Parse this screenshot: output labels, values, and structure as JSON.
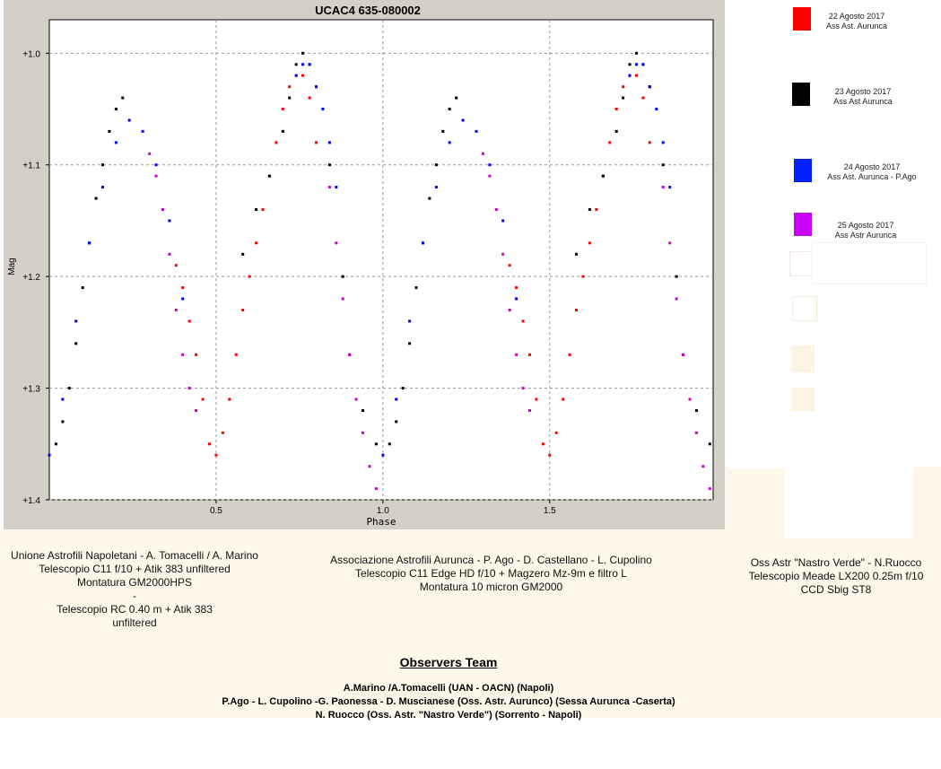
{
  "chart_data": {
    "type": "scatter",
    "title": "UCAC4 635-080002",
    "xlabel": "Phase",
    "ylabel": "Mag",
    "xlim": [
      0,
      1.99
    ],
    "ylim": [
      1.4,
      0.97
    ],
    "y_inverted": true,
    "grid": true,
    "x_ticks": [
      {
        "value": 0.5,
        "label": "0.5"
      },
      {
        "value": 1.0,
        "label": "1.0"
      },
      {
        "value": 1.5,
        "label": "1.5"
      }
    ],
    "y_ticks": [
      {
        "value": 1.0,
        "label": "+1.0"
      },
      {
        "value": 1.1,
        "label": "+1.1"
      },
      {
        "value": 1.2,
        "label": "+1.2"
      },
      {
        "value": 1.3,
        "label": "+1.3"
      },
      {
        "value": 1.4,
        "label": "+1.4"
      }
    ],
    "series": [
      {
        "name": "22 Agosto 2017 Ass Ast. Aurunca",
        "color": "#ff0000",
        "x": [
          0.38,
          0.4,
          0.42,
          0.44,
          0.46,
          0.48,
          0.5,
          0.52,
          0.54,
          0.56,
          0.58,
          0.6,
          0.62,
          0.64,
          0.66,
          0.68,
          0.7,
          0.72,
          0.74,
          0.76,
          0.78,
          0.8
        ],
        "y": [
          1.19,
          1.21,
          1.24,
          1.27,
          1.31,
          1.35,
          1.36,
          1.34,
          1.31,
          1.27,
          1.23,
          1.2,
          1.17,
          1.14,
          1.11,
          1.08,
          1.05,
          1.03,
          1.02,
          1.02,
          1.04,
          1.08
        ]
      },
      {
        "name": "23 Agosto 2017 Ass Ast Aurunca",
        "color": "#000000",
        "x": [
          0.02,
          0.04,
          0.06,
          0.08,
          0.1,
          0.12,
          0.14,
          0.16,
          0.18,
          0.2,
          0.22,
          0.58,
          0.62,
          0.66,
          0.7,
          0.72,
          0.74,
          0.76,
          0.78,
          0.8,
          0.84,
          0.88,
          0.9,
          0.94,
          0.98
        ],
        "y": [
          1.35,
          1.33,
          1.3,
          1.26,
          1.21,
          1.17,
          1.13,
          1.1,
          1.07,
          1.05,
          1.04,
          1.18,
          1.14,
          1.11,
          1.07,
          1.04,
          1.01,
          1.0,
          1.01,
          1.03,
          1.1,
          1.2,
          1.27,
          1.32,
          1.35
        ]
      },
      {
        "name": "24 Agosto 2017 Ass Ast. Aurunca - P.Ago",
        "color": "#0000ff",
        "x": [
          0.0,
          0.04,
          0.08,
          0.12,
          0.16,
          0.2,
          0.24,
          0.28,
          0.32,
          0.36,
          0.4,
          0.74,
          0.76,
          0.78,
          0.8,
          0.82,
          0.84,
          0.86
        ],
        "y": [
          1.36,
          1.31,
          1.24,
          1.17,
          1.12,
          1.08,
          1.06,
          1.07,
          1.1,
          1.15,
          1.22,
          1.02,
          1.01,
          1.01,
          1.03,
          1.05,
          1.08,
          1.12
        ]
      },
      {
        "name": "25 Agosto 2017 Ass Astr Aurunca",
        "color": "#cc00cc",
        "x": [
          0.3,
          0.32,
          0.34,
          0.36,
          0.38,
          0.4,
          0.42,
          0.44,
          0.84,
          0.86,
          0.88,
          0.9,
          0.92,
          0.94,
          0.96,
          0.98
        ],
        "y": [
          1.09,
          1.11,
          1.14,
          1.18,
          1.23,
          1.27,
          1.3,
          1.32,
          1.12,
          1.17,
          1.22,
          1.27,
          1.31,
          1.34,
          1.37,
          1.39
        ]
      }
    ]
  },
  "legend": [
    {
      "date": "22 Agosto 2017",
      "label": "Ass Ast. Aurunca",
      "color": "#ff0000"
    },
    {
      "date": "23 Agosto 2017",
      "label": "Ass Ast Aurunca",
      "color": "#000000"
    },
    {
      "date": "24 Agosto 2017",
      "label": "Ass Ast. Aurunca - P.Ago",
      "color": "#0022ff"
    },
    {
      "date": "25 Agosto 2017",
      "label": "Ass Astr Aurunca",
      "color": "#cc00ff"
    }
  ],
  "observers": {
    "uan": [
      "Unione Astrofili Napoletani - A. Tomacelli / A. Marino",
      "Telescopio C11 f/10 + Atik 383 unfiltered",
      "Montatura GM2000HPS",
      "-",
      "Telescopio RC 0.40 m + Atik 383",
      "unfiltered"
    ],
    "aurunca": [
      "Associazione Astrofili Aurunca - P. Ago - D. Castellano - L. Cupolino",
      "Telescopio C11 Edge HD f/10 + Magzero Mz-9m e filtro L",
      "Montatura 10 micron GM2000"
    ],
    "nastro": [
      "Oss Astr \"Nastro Verde\" - N.Ruocco",
      "Telescopio Meade LX200 0.25m f/10",
      "CCD Sbig ST8"
    ]
  },
  "team": {
    "title": "Observers Team",
    "lines": [
      "A.Marino /A.Tomacelli (UAN - OACN) (Napoli)",
      "P.Ago - L. Cupolino -G. Paonessa - D. Muscianese (Oss. Astr. Aurunco) (Sessa Aurunca -Caserta)",
      "N. Ruocco (Oss. Astr. \"Nastro Verde\") (Sorrento - Napoli)"
    ]
  }
}
